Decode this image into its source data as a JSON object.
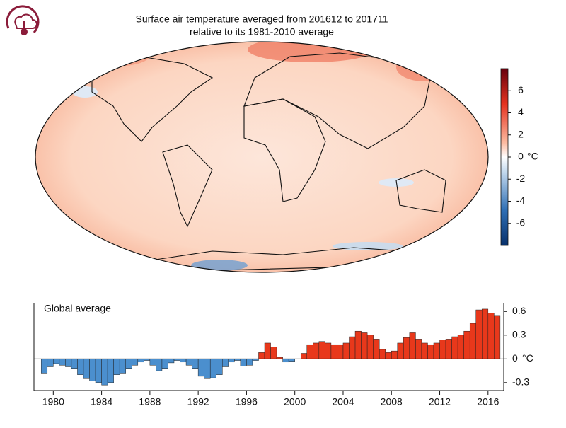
{
  "title": [
    "Surface air temperature averaged from 201612 to 201711",
    "relative to its 1981-2010 average"
  ],
  "colorbar": {
    "lim": [
      -8,
      8
    ],
    "ticks": [
      -6,
      -4,
      -2,
      0,
      2,
      4,
      6
    ],
    "unit": "°C"
  },
  "chart_data": {
    "type": "bar",
    "label": "Global average",
    "x": [
      1979.25,
      1979.75,
      1980.25,
      1980.75,
      1981.25,
      1981.75,
      1982.25,
      1982.75,
      1983.25,
      1983.75,
      1984.25,
      1984.75,
      1985.25,
      1985.75,
      1986.25,
      1986.75,
      1987.25,
      1987.75,
      1988.25,
      1988.75,
      1989.25,
      1989.75,
      1990.25,
      1990.75,
      1991.25,
      1991.75,
      1992.25,
      1992.75,
      1993.25,
      1993.75,
      1994.25,
      1994.75,
      1995.25,
      1995.75,
      1996.25,
      1996.75,
      1997.25,
      1997.75,
      1998.25,
      1998.75,
      1999.25,
      1999.75,
      2000.25,
      2000.75,
      2001.25,
      2001.75,
      2002.25,
      2002.75,
      2003.25,
      2003.75,
      2004.25,
      2004.75,
      2005.25,
      2005.75,
      2006.25,
      2006.75,
      2007.25,
      2007.75,
      2008.25,
      2008.75,
      2009.25,
      2009.75,
      2010.25,
      2010.75,
      2011.25,
      2011.75,
      2012.25,
      2012.75,
      2013.25,
      2013.75,
      2014.25,
      2014.75,
      2015.25,
      2015.75,
      2016.25,
      2016.75
    ],
    "values": [
      -0.18,
      -0.1,
      -0.06,
      -0.08,
      -0.1,
      -0.12,
      -0.2,
      -0.25,
      -0.28,
      -0.3,
      -0.33,
      -0.3,
      -0.2,
      -0.18,
      -0.12,
      -0.08,
      -0.04,
      -0.02,
      -0.08,
      -0.15,
      -0.12,
      -0.05,
      -0.02,
      -0.04,
      -0.08,
      -0.12,
      -0.22,
      -0.25,
      -0.24,
      -0.2,
      -0.1,
      -0.04,
      -0.02,
      -0.09,
      -0.08,
      -0.02,
      0.08,
      0.2,
      0.15,
      0.02,
      -0.04,
      -0.03,
      0.0,
      0.07,
      0.18,
      0.2,
      0.22,
      0.2,
      0.18,
      0.18,
      0.2,
      0.28,
      0.35,
      0.33,
      0.3,
      0.25,
      0.12,
      0.08,
      0.1,
      0.2,
      0.27,
      0.33,
      0.25,
      0.2,
      0.18,
      0.2,
      0.24,
      0.25,
      0.28,
      0.3,
      0.35,
      0.45,
      0.62,
      0.63,
      0.58,
      0.55
    ],
    "xlim": [
      1978.4,
      2017.3
    ],
    "ylim": [
      -0.4,
      0.71
    ],
    "xticks": [
      1980,
      1984,
      1988,
      1992,
      1996,
      2000,
      2004,
      2008,
      2012,
      2016
    ],
    "yticks": [
      -0.3,
      0,
      0.3,
      0.6
    ],
    "y_unit": "°C",
    "positive_color": "#e8381b",
    "negative_color": "#4b8fce"
  }
}
